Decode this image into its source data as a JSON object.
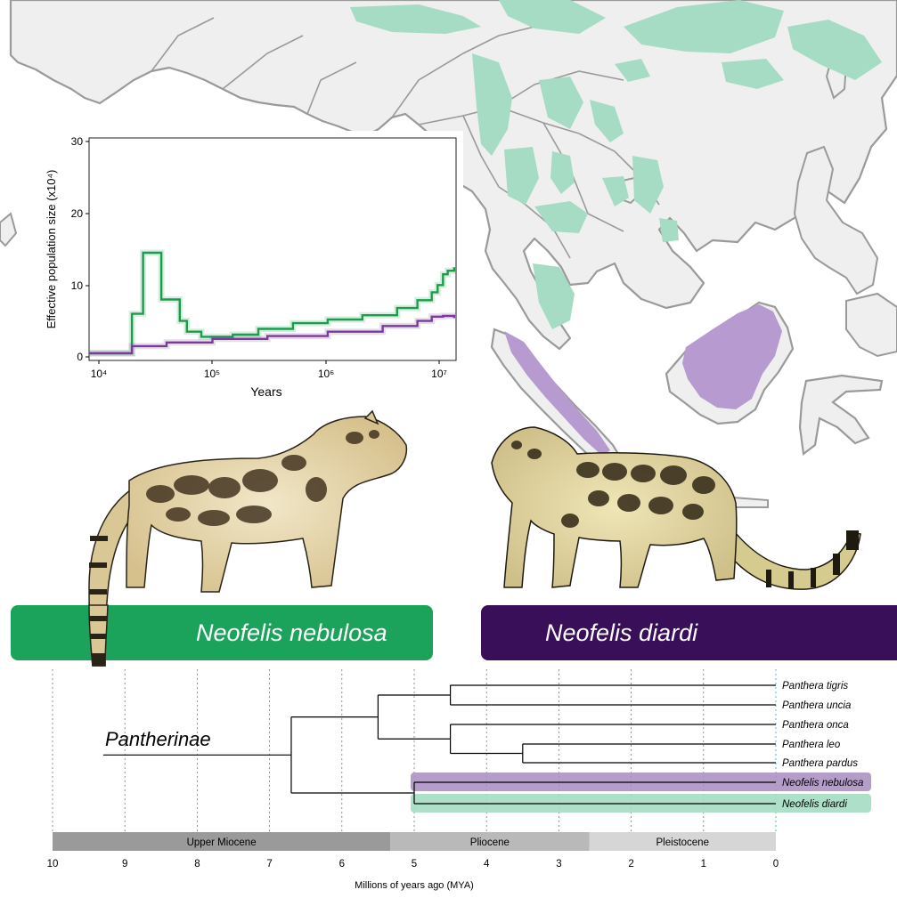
{
  "colors": {
    "land": "#efefef",
    "coast": "#9a9a9a",
    "nebulosa_green": "#1ba35b",
    "range_green": "#a5dcc3",
    "diardi_purple": "#3a0f5a",
    "range_purple": "#b69ad0",
    "line_purple": "#7b3b99"
  },
  "banners": {
    "nebulosa": "Neofelis nebulosa",
    "diardi": "Neofelis diardi"
  },
  "psmc": {
    "ylabel": "Effective population size (x10⁴)",
    "xlabel": "Years",
    "y_ticks": [
      "0",
      "10",
      "20",
      "30"
    ],
    "x_ticks": [
      "10⁴",
      "10⁵",
      "10⁶",
      "10⁷"
    ]
  },
  "chart_data": {
    "type": "line",
    "x_scale": "log",
    "xlabel": "Years",
    "ylabel": "Effective population size (x10⁴)",
    "xlim": [
      8500,
      13000000
    ],
    "ylim": [
      0,
      31
    ],
    "series": [
      {
        "color": "#1b9e4b",
        "x": [
          8500,
          19000,
          20000,
          25000,
          30000,
          36000,
          40000,
          52000,
          60000,
          80000,
          100000,
          150000,
          250000,
          500000,
          1000000,
          2000000,
          4000000,
          6000000,
          8000000,
          9000000,
          10000000,
          11000000,
          12500000
        ],
        "y": [
          1.0,
          1.0,
          6.5,
          15,
          15,
          8.5,
          8.5,
          5.5,
          4,
          3.3,
          3.3,
          3.6,
          4.4,
          5.2,
          5.7,
          6.3,
          7.3,
          8.4,
          9.5,
          10.5,
          12,
          12.5,
          13
        ]
      },
      {
        "color": "#7b3b99",
        "x": [
          8500,
          19000,
          20000,
          40000,
          100000,
          300000,
          1000000,
          3000000,
          6000000,
          8000000,
          10000000,
          12500000
        ],
        "y": [
          1.0,
          1.0,
          2.0,
          2.5,
          3.0,
          3.4,
          4.0,
          4.8,
          5.5,
          6.1,
          6.2,
          5.9
        ]
      }
    ]
  },
  "tree": {
    "clade": "Pantherinae",
    "taxa": [
      "Panthera tigris",
      "Panthera uncia",
      "Panthera onca",
      "Panthera leo",
      "Panthera pardus",
      "Neofelis nebulosa",
      "Neofelis diardi"
    ],
    "axis_ticks": [
      "10",
      "9",
      "8",
      "7",
      "6",
      "5",
      "4",
      "3",
      "2",
      "1",
      "0"
    ],
    "axis_label": "Millions of years ago (MYA)",
    "epochs": [
      {
        "name": "Upper Miocene",
        "start_mya": 10,
        "end_mya": 5.33
      },
      {
        "name": "Pliocene",
        "start_mya": 5.33,
        "end_mya": 2.58
      },
      {
        "name": "Pleistocene",
        "start_mya": 2.58,
        "end_mya": 0
      }
    ],
    "node_ages_mya": {
      "root": 6.7,
      "panthera": 5.5,
      "tigris_uncia": 4.5,
      "onca_leo_pardus": 4.5,
      "leo_pardus": 3.5,
      "neofelis": 5.0
    }
  }
}
